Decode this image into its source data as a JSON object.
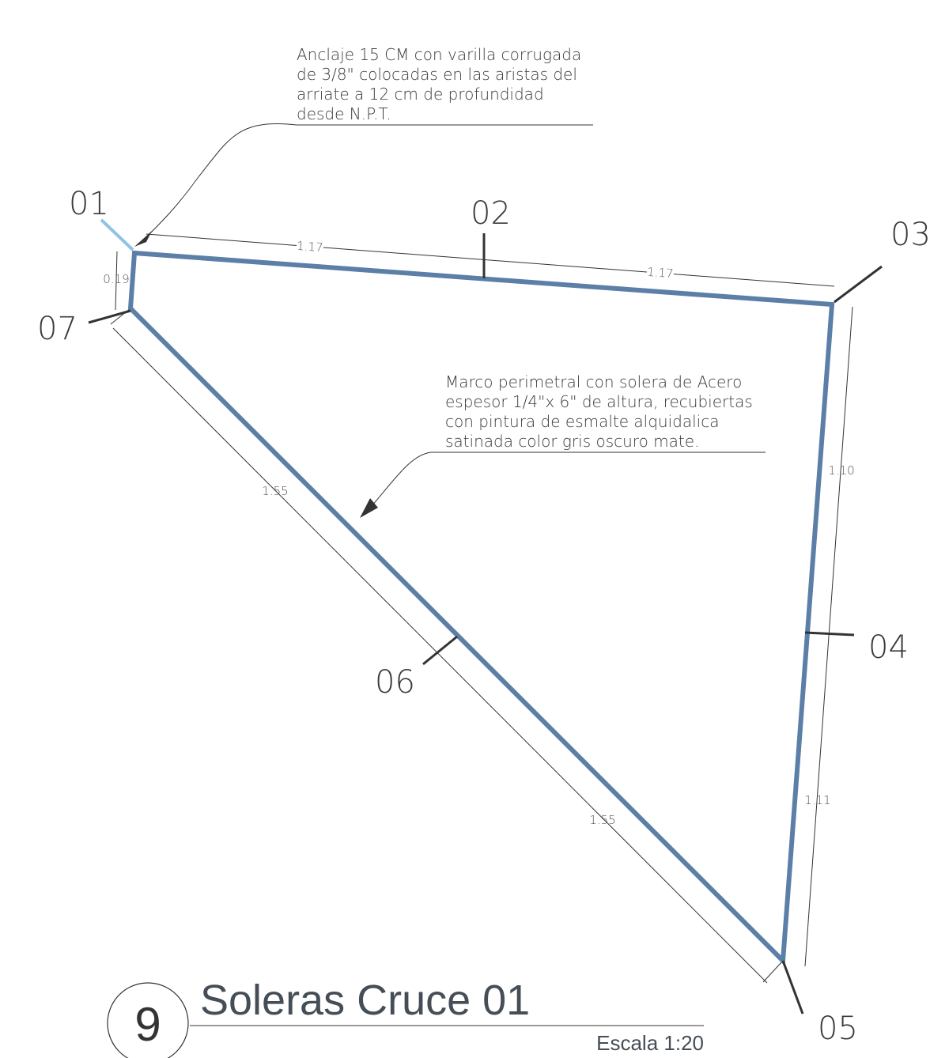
{
  "notes": [
    {
      "lines": [
        "Anclaje 15 CM con varilla corrugada",
        "de 3/8\" colocadas en las aristas del",
        "arriate a 12 cm de profundidad",
        "desde N.P.T."
      ]
    },
    {
      "lines": [
        "Marco perimetral con solera de Acero",
        "espesor  1/4\"x 6\" de altura, recubiertas",
        "con pintura de  esmalte alquidalica",
        "satinada color gris oscuro mate."
      ]
    }
  ],
  "points": [
    "01",
    "02",
    "03",
    "04",
    "05",
    "06",
    "07"
  ],
  "dimensions": {
    "top_left": "1.17",
    "top_right": "1.17",
    "left": "0.19",
    "right_top": "1.10",
    "right_bottom": "1.11",
    "diagonal_top": "1.55",
    "diagonal_bottom": "1.55"
  },
  "title": {
    "number": "9",
    "name": "Soleras Cruce 01",
    "scale": "Escala 1:20"
  }
}
